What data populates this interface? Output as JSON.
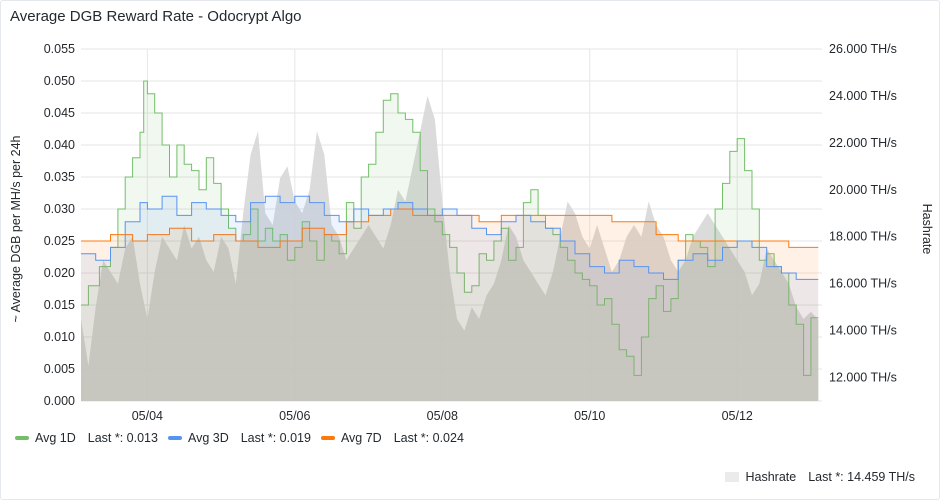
{
  "panel": {
    "title": "Average DGB Reward Rate - Odocrypt Algo"
  },
  "colors": {
    "avg1d": "#73bf69",
    "avg3d": "#5794f2",
    "avg7d": "#ff780a",
    "hashrate": "#d8d8d8",
    "grid": "#e6e6e6"
  },
  "chart_data": {
    "type": "line",
    "title": "Average DGB Reward Rate - Odocrypt Algo",
    "ylabel": "~ Average DGB per MH/s per 24h",
    "y2label": "Hashrate",
    "ylim": [
      0,
      0.055
    ],
    "y2lim": [
      11000,
      26000
    ],
    "yticks": [
      "0.000",
      "0.005",
      "0.010",
      "0.015",
      "0.020",
      "0.025",
      "0.030",
      "0.035",
      "0.040",
      "0.045",
      "0.050",
      "0.055"
    ],
    "y2ticks": [
      "12.000 TH/s",
      "14.000 TH/s",
      "16.000 TH/s",
      "18.000 TH/s",
      "20.000 TH/s",
      "22.000 TH/s",
      "24.000 TH/s",
      "26.000 TH/s"
    ],
    "xlim": [
      3.1,
      13.15
    ],
    "xticks": [
      {
        "x": 4,
        "label": "05/04"
      },
      {
        "x": 6,
        "label": "05/06"
      },
      {
        "x": 8,
        "label": "05/08"
      },
      {
        "x": 10,
        "label": "05/10"
      },
      {
        "x": 12,
        "label": "05/12"
      }
    ],
    "grid": true,
    "series": [
      {
        "name": "Avg 1D",
        "last_label": "Last *: 0.013",
        "axis": "left",
        "x": [
          3.1,
          3.2,
          3.35,
          3.5,
          3.6,
          3.7,
          3.8,
          3.9,
          3.95,
          4.0,
          4.1,
          4.2,
          4.3,
          4.4,
          4.5,
          4.6,
          4.7,
          4.8,
          4.9,
          5.0,
          5.1,
          5.2,
          5.3,
          5.4,
          5.5,
          5.6,
          5.7,
          5.8,
          5.9,
          6.0,
          6.1,
          6.2,
          6.3,
          6.4,
          6.5,
          6.6,
          6.7,
          6.8,
          6.9,
          7.0,
          7.1,
          7.2,
          7.3,
          7.4,
          7.5,
          7.6,
          7.7,
          7.8,
          7.9,
          8.0,
          8.1,
          8.2,
          8.3,
          8.4,
          8.5,
          8.6,
          8.7,
          8.8,
          8.9,
          9.0,
          9.1,
          9.2,
          9.3,
          9.4,
          9.5,
          9.6,
          9.7,
          9.8,
          9.9,
          10.0,
          10.1,
          10.2,
          10.3,
          10.4,
          10.5,
          10.6,
          10.7,
          10.8,
          10.9,
          11.0,
          11.1,
          11.2,
          11.3,
          11.4,
          11.5,
          11.6,
          11.7,
          11.8,
          11.9,
          12.0,
          12.1,
          12.2,
          12.3,
          12.4,
          12.5,
          12.6,
          12.7,
          12.8,
          12.9,
          13.0,
          13.1
        ],
        "y": [
          0.015,
          0.018,
          0.021,
          0.024,
          0.03,
          0.035,
          0.038,
          0.042,
          0.05,
          0.048,
          0.045,
          0.04,
          0.035,
          0.04,
          0.037,
          0.036,
          0.033,
          0.038,
          0.034,
          0.03,
          0.027,
          0.025,
          0.026,
          0.03,
          0.025,
          0.027,
          0.025,
          0.026,
          0.022,
          0.024,
          0.028,
          0.025,
          0.022,
          0.026,
          0.025,
          0.023,
          0.031,
          0.027,
          0.035,
          0.037,
          0.042,
          0.047,
          0.048,
          0.045,
          0.044,
          0.042,
          0.036,
          0.03,
          0.028,
          0.026,
          0.024,
          0.02,
          0.017,
          0.018,
          0.023,
          0.022,
          0.025,
          0.027,
          0.022,
          0.024,
          0.031,
          0.033,
          0.029,
          0.027,
          0.026,
          0.024,
          0.022,
          0.02,
          0.019,
          0.018,
          0.015,
          0.016,
          0.012,
          0.008,
          0.007,
          0.004,
          0.01,
          0.016,
          0.018,
          0.014,
          0.016,
          0.022,
          0.026,
          0.025,
          0.024,
          0.021,
          0.03,
          0.034,
          0.039,
          0.041,
          0.036,
          0.03,
          0.022,
          0.023,
          0.021,
          0.02,
          0.015,
          0.012,
          0.004,
          0.013,
          0.013
        ]
      },
      {
        "name": "Avg 3D",
        "last_label": "Last *: 0.019",
        "axis": "left",
        "x": [
          3.1,
          3.3,
          3.5,
          3.7,
          3.9,
          4.0,
          4.2,
          4.4,
          4.6,
          4.8,
          5.0,
          5.2,
          5.4,
          5.6,
          5.8,
          6.0,
          6.2,
          6.4,
          6.6,
          6.8,
          7.0,
          7.2,
          7.4,
          7.6,
          7.8,
          8.0,
          8.2,
          8.4,
          8.6,
          8.8,
          9.0,
          9.2,
          9.4,
          9.6,
          9.8,
          10.0,
          10.2,
          10.4,
          10.6,
          10.8,
          11.0,
          11.2,
          11.4,
          11.6,
          11.8,
          12.0,
          12.2,
          12.4,
          12.6,
          12.8,
          13.0,
          13.1
        ],
        "y": [
          0.023,
          0.022,
          0.024,
          0.028,
          0.031,
          0.03,
          0.032,
          0.029,
          0.031,
          0.03,
          0.029,
          0.028,
          0.031,
          0.032,
          0.031,
          0.032,
          0.031,
          0.029,
          0.028,
          0.03,
          0.029,
          0.03,
          0.031,
          0.03,
          0.029,
          0.03,
          0.029,
          0.027,
          0.026,
          0.028,
          0.029,
          0.028,
          0.027,
          0.025,
          0.023,
          0.021,
          0.02,
          0.022,
          0.021,
          0.02,
          0.019,
          0.022,
          0.023,
          0.022,
          0.024,
          0.025,
          0.024,
          0.021,
          0.02,
          0.019,
          0.019,
          0.019
        ]
      },
      {
        "name": "Avg 7D",
        "last_label": "Last *: 0.024",
        "axis": "left",
        "x": [
          3.1,
          3.5,
          3.8,
          4.0,
          4.3,
          4.6,
          4.9,
          5.2,
          5.5,
          5.8,
          6.1,
          6.4,
          6.7,
          7.0,
          7.3,
          7.6,
          7.9,
          8.2,
          8.5,
          8.8,
          9.1,
          9.4,
          9.7,
          10.0,
          10.3,
          10.6,
          10.9,
          11.2,
          11.5,
          11.8,
          12.1,
          12.4,
          12.7,
          13.0,
          13.1
        ],
        "y": [
          0.025,
          0.026,
          0.025,
          0.026,
          0.027,
          0.025,
          0.026,
          0.025,
          0.024,
          0.025,
          0.027,
          0.026,
          0.028,
          0.029,
          0.03,
          0.029,
          0.029,
          0.029,
          0.028,
          0.029,
          0.029,
          0.029,
          0.029,
          0.029,
          0.028,
          0.028,
          0.026,
          0.025,
          0.025,
          0.025,
          0.025,
          0.025,
          0.024,
          0.024,
          0.024
        ]
      },
      {
        "name": "Hashrate",
        "last_label": "Last *: 14.459 TH/s",
        "axis": "right",
        "x": [
          3.1,
          3.2,
          3.3,
          3.4,
          3.5,
          3.6,
          3.7,
          3.8,
          3.9,
          4.0,
          4.1,
          4.2,
          4.3,
          4.4,
          4.5,
          4.6,
          4.7,
          4.8,
          4.9,
          5.0,
          5.1,
          5.2,
          5.3,
          5.4,
          5.5,
          5.6,
          5.7,
          5.8,
          5.9,
          6.0,
          6.1,
          6.2,
          6.3,
          6.4,
          6.5,
          6.6,
          6.7,
          6.8,
          6.9,
          7.0,
          7.1,
          7.2,
          7.3,
          7.4,
          7.5,
          7.6,
          7.7,
          7.8,
          7.9,
          8.0,
          8.1,
          8.2,
          8.3,
          8.4,
          8.5,
          8.6,
          8.7,
          8.8,
          8.9,
          9.0,
          9.1,
          9.2,
          9.3,
          9.4,
          9.5,
          9.6,
          9.7,
          9.8,
          9.9,
          10.0,
          10.1,
          10.2,
          10.3,
          10.4,
          10.5,
          10.6,
          10.7,
          10.8,
          10.9,
          11.0,
          11.1,
          11.2,
          11.3,
          11.4,
          11.5,
          11.6,
          11.7,
          11.8,
          11.9,
          12.0,
          12.1,
          12.2,
          12.3,
          12.4,
          12.5,
          12.6,
          12.7,
          12.8,
          12.9,
          13.0,
          13.1
        ],
        "y": [
          14500,
          12500,
          15000,
          17000,
          16500,
          16000,
          17500,
          18000,
          16000,
          14500,
          16500,
          18000,
          17500,
          17000,
          18500,
          17500,
          18000,
          17000,
          16500,
          18000,
          17500,
          16000,
          19000,
          21500,
          22500,
          19000,
          18500,
          20500,
          21000,
          19500,
          19000,
          20000,
          22500,
          21500,
          18500,
          18000,
          17000,
          17500,
          18000,
          18500,
          18000,
          17500,
          18500,
          20000,
          19500,
          21000,
          22500,
          24000,
          23000,
          19500,
          16500,
          14500,
          14000,
          15000,
          14500,
          15500,
          16000,
          17000,
          18500,
          18000,
          17000,
          16500,
          16000,
          15500,
          16500,
          18000,
          19500,
          19000,
          18000,
          17500,
          18500,
          17500,
          16500,
          17000,
          18000,
          18500,
          18000,
          19500,
          18500,
          18000,
          17000,
          16500,
          17000,
          18000,
          18500,
          19000,
          18500,
          18000,
          17500,
          17000,
          16500,
          15500,
          16000,
          17500,
          17000,
          16500,
          16000,
          15000,
          14500,
          14800,
          14459
        ]
      }
    ]
  },
  "legend": {
    "avg1d": {
      "name": "Avg 1D",
      "last": "Last *: 0.013"
    },
    "avg3d": {
      "name": "Avg 3D",
      "last": "Last *: 0.019"
    },
    "avg7d": {
      "name": "Avg 7D",
      "last": "Last *: 0.024"
    },
    "hashrate": {
      "name": "Hashrate",
      "last": "Last *: 14.459 TH/s"
    }
  }
}
